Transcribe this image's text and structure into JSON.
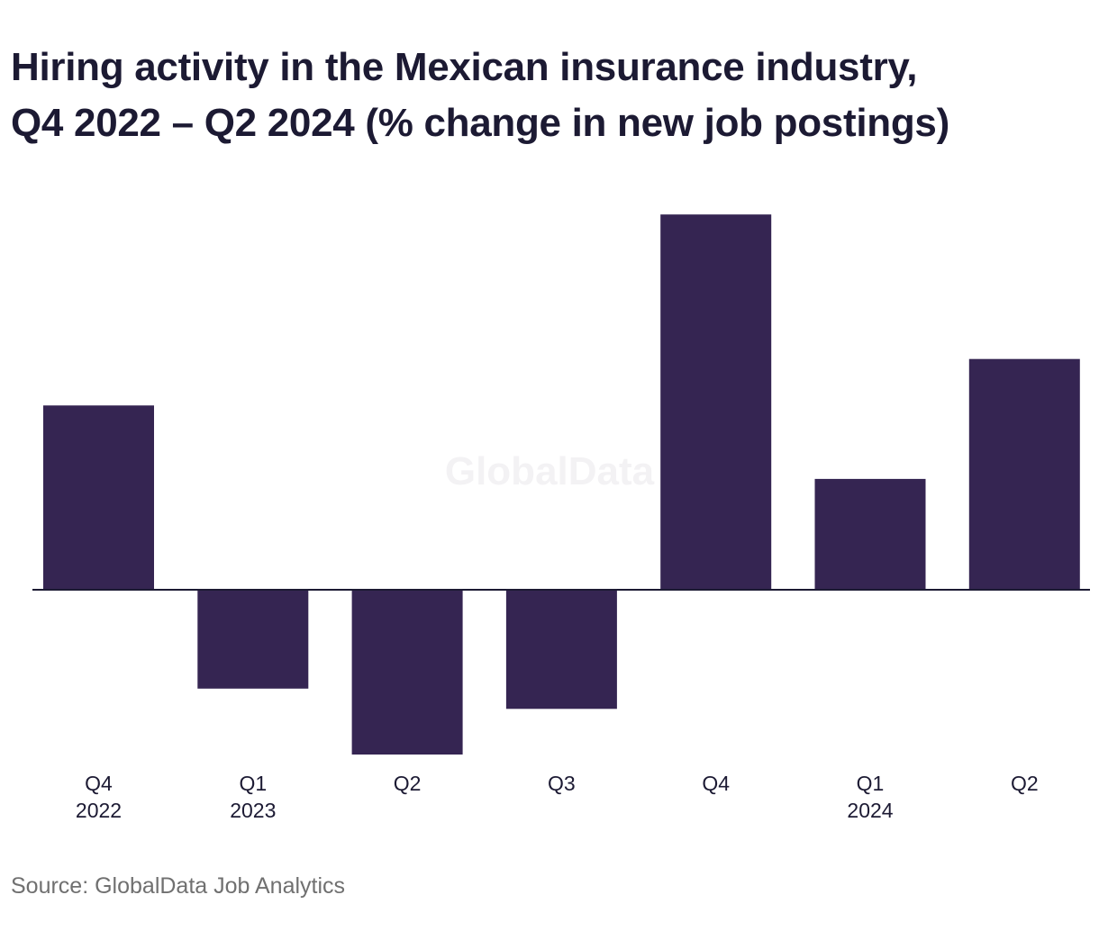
{
  "chart_data": {
    "type": "bar",
    "title": [
      "Hiring activity in the Mexican insurance industry,",
      "Q4 2022 – Q2 2024 (% change in new job postings)"
    ],
    "categories": [
      {
        "quarter": "Q4",
        "year": "2022"
      },
      {
        "quarter": "Q1",
        "year": "2023"
      },
      {
        "quarter": "Q2",
        "year": ""
      },
      {
        "quarter": "Q3",
        "year": ""
      },
      {
        "quarter": "Q4",
        "year": ""
      },
      {
        "quarter": "Q1",
        "year": "2024"
      },
      {
        "quarter": "Q2",
        "year": ""
      }
    ],
    "values": [
      24.6,
      -13.2,
      -22.0,
      -15.9,
      50.1,
      14.8,
      30.8
    ],
    "ylim": [
      -25,
      50
    ],
    "bar_color": "#352552",
    "baseline_color": "#1c1a33",
    "grid": false,
    "legend": "none",
    "watermark": "GlobalData"
  },
  "source": "Source: GlobalData Job Analytics"
}
